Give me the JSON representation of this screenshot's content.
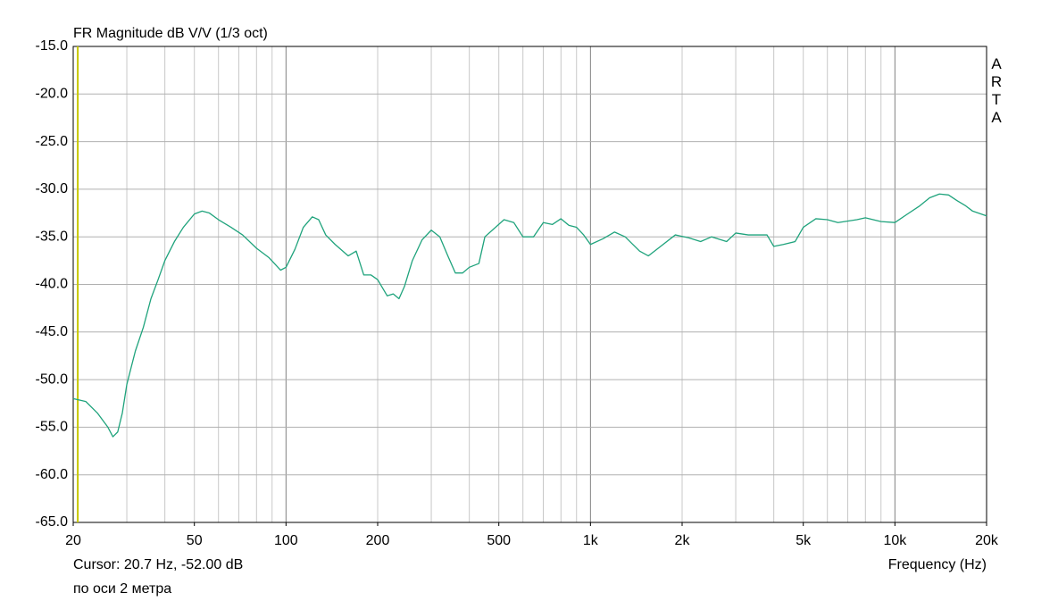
{
  "chart_data": {
    "type": "line",
    "title": "FR Magnitude dB V/V (1/3 oct)",
    "brand": "ARTA",
    "x_label": "Frequency (Hz)",
    "note": "по оси 2 метра",
    "cursor": {
      "label": "Cursor: 20.7 Hz, -52.00 dB",
      "x": 20.7,
      "color": "#c8c800"
    },
    "xscale": "log",
    "grid": true,
    "xlim": [
      20,
      20000
    ],
    "ylim": [
      -65,
      -15
    ],
    "xticks": [
      20,
      50,
      100,
      200,
      500,
      {
        "value": 1000,
        "label": "1k"
      },
      {
        "value": 2000,
        "label": "2k"
      },
      {
        "value": 5000,
        "label": "5k"
      },
      {
        "value": 10000,
        "label": "10k"
      },
      {
        "value": 20000,
        "label": "20k"
      }
    ],
    "yticks": [
      {
        "value": -15,
        "label": "-15.0"
      },
      {
        "value": -20,
        "label": "-20.0"
      },
      {
        "value": -25,
        "label": "-25.0"
      },
      {
        "value": -30,
        "label": "-30.0"
      },
      {
        "value": -35,
        "label": "-35.0"
      },
      {
        "value": -40,
        "label": "-40.0"
      },
      {
        "value": -45,
        "label": "-45.0"
      },
      {
        "value": -50,
        "label": "-50.0"
      },
      {
        "value": -55,
        "label": "-55.0"
      },
      {
        "value": -60,
        "label": "-60.0"
      },
      {
        "value": -65,
        "label": "-65.0"
      }
    ],
    "x": [
      20,
      22,
      24,
      26,
      27,
      28,
      29,
      30,
      32,
      34,
      36,
      38,
      40,
      43,
      46,
      50,
      53,
      56,
      60,
      66,
      72,
      80,
      88,
      96,
      100,
      107,
      114,
      122,
      128,
      135,
      145,
      160,
      170,
      180,
      190,
      200,
      215,
      225,
      235,
      245,
      260,
      280,
      300,
      320,
      340,
      360,
      380,
      400,
      430,
      450,
      480,
      520,
      560,
      600,
      650,
      700,
      750,
      800,
      850,
      900,
      950,
      1000,
      1100,
      1200,
      1300,
      1450,
      1550,
      1700,
      1900,
      2100,
      2300,
      2500,
      2800,
      3000,
      3300,
      3800,
      4000,
      4300,
      4700,
      5000,
      5500,
      6000,
      6500,
      7500,
      8000,
      9000,
      10000,
      11000,
      12000,
      13000,
      14000,
      15000,
      16000,
      17000,
      18000,
      20000
    ],
    "series": [
      {
        "color": "#1fa37c",
        "values": [
          -52.0,
          -52.3,
          -53.5,
          -55.0,
          -56.0,
          -55.5,
          -53.5,
          -50.5,
          -47,
          -44.5,
          -41.5,
          -39.5,
          -37.5,
          -35.5,
          -34,
          -32.6,
          -32.3,
          -32.5,
          -33.2,
          -34,
          -34.8,
          -36.2,
          -37.2,
          -38.5,
          -38.2,
          -36.3,
          -34.0,
          -32.9,
          -33.2,
          -34.8,
          -35.8,
          -37,
          -36.5,
          -39.0,
          -39,
          -39.5,
          -41.2,
          -41.0,
          -41.5,
          -40.2,
          -37.5,
          -35.3,
          -34.3,
          -35,
          -37,
          -38.8,
          -38.8,
          -38.2,
          -37.8,
          -35,
          -34.2,
          -33.2,
          -33.5,
          -35.0,
          -35.0,
          -33.5,
          -33.7,
          -33.1,
          -33.8,
          -34,
          -34.8,
          -35.8,
          -35.2,
          -34.5,
          -35,
          -36.5,
          -37,
          -36,
          -34.8,
          -35.1,
          -35.5,
          -35.0,
          -35.5,
          -34.6,
          -34.8,
          -34.8,
          -36,
          -35.8,
          -35.5,
          -34.0,
          -33.1,
          -33.2,
          -33.5,
          -33.2,
          -33.0,
          -33.4,
          -33.5,
          -32.6,
          -31.8,
          -30.9,
          -30.5,
          -30.6,
          -31.2,
          -31.7,
          -32.3,
          -32.8
        ]
      }
    ]
  }
}
